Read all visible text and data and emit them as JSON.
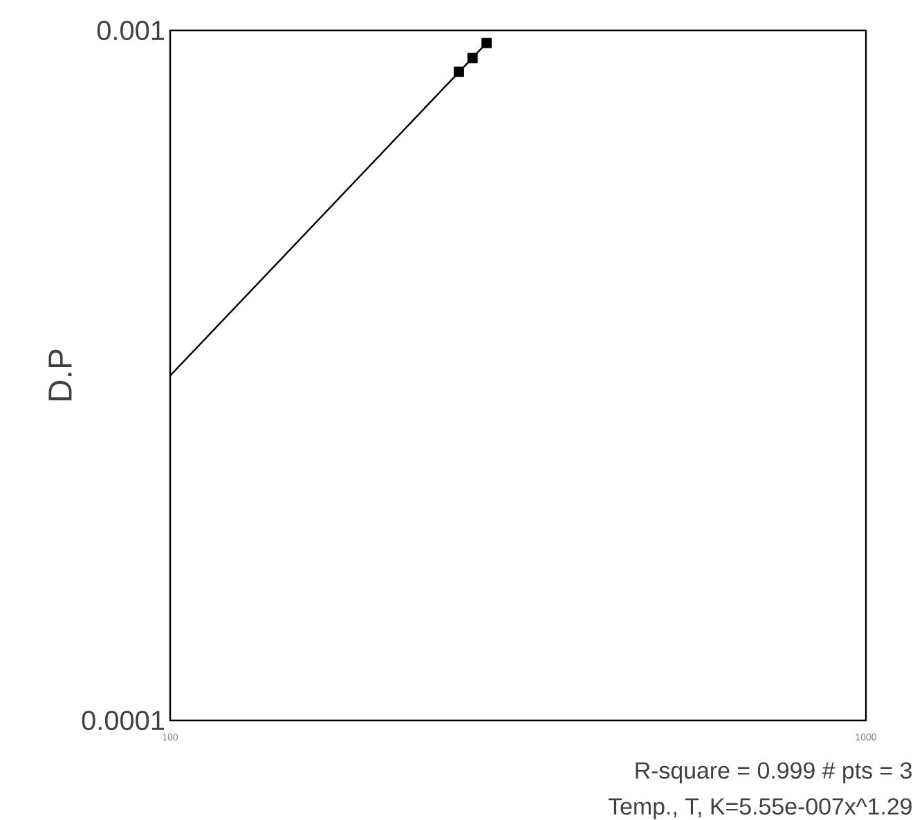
{
  "chart_data": {
    "type": "scatter",
    "ylabel": "D.P",
    "log": "xy",
    "xlim": [
      100,
      1000
    ],
    "ylim": [
      0.0001,
      0.001
    ],
    "xticks": [
      100,
      1000
    ],
    "yticks": [
      0.0001,
      0.001
    ],
    "grid": false,
    "series": [
      {
        "type": "line",
        "color": "#000000",
        "marker": "none",
        "line_style": "solid",
        "x": [
          100,
          285
        ],
        "values": [
          0.000316,
          0.000959
        ]
      },
      {
        "color": "#000000",
        "marker": "square",
        "x": [
          260,
          272,
          285
        ],
        "values": [
          0.000871,
          0.000912,
          0.000959
        ]
      }
    ],
    "annotations": [
      "R-square = 0.999  # pts = 3",
      "Temp., T, K=5.55e-007x^1.29"
    ]
  }
}
